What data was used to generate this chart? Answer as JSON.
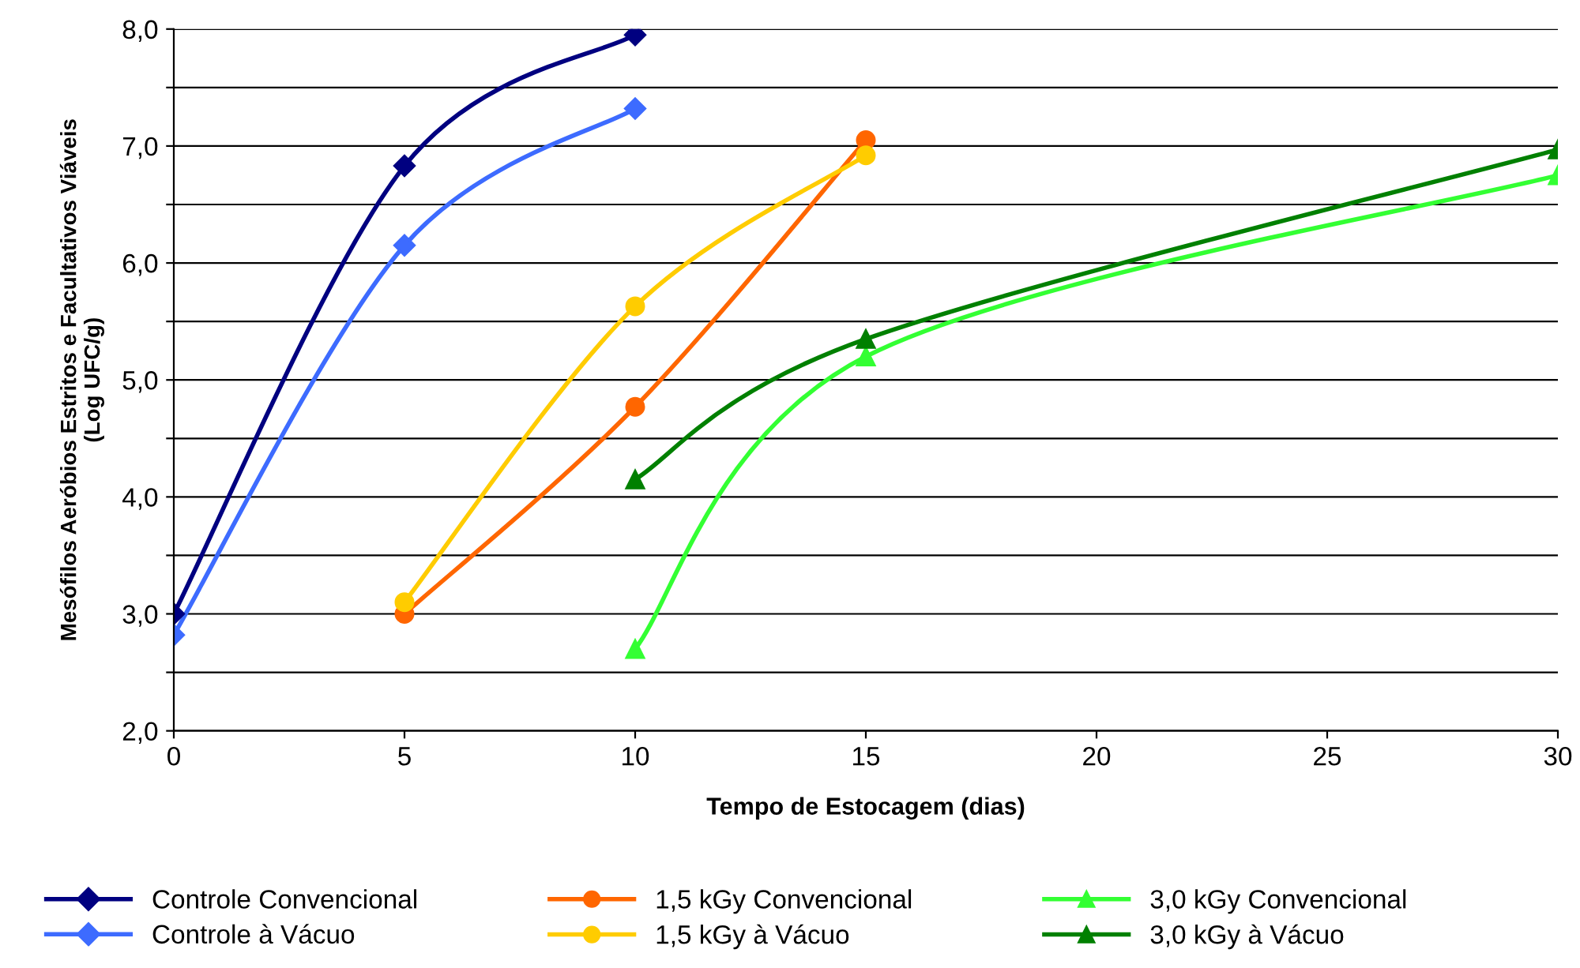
{
  "chart_data": {
    "type": "line",
    "xlabel": "Tempo de Estocagem (dias)",
    "ylabel": "Mesófilos Aeróbios Estritos e Facultativos Viáveis\n(Log UFC/g)",
    "xlim": [
      0,
      30
    ],
    "xticks": [
      0,
      5,
      10,
      15,
      20,
      25,
      30
    ],
    "ylim": [
      2,
      8
    ],
    "yticks": [
      {
        "value": 2,
        "label": "2,0"
      },
      {
        "value": 2.5,
        "label": null
      },
      {
        "value": 3,
        "label": "3,0"
      },
      {
        "value": 3.5,
        "label": null
      },
      {
        "value": 4,
        "label": "4,0"
      },
      {
        "value": 4.5,
        "label": null
      },
      {
        "value": 5,
        "label": "5,0"
      },
      {
        "value": 5.5,
        "label": null
      },
      {
        "value": 6,
        "label": "6,0"
      },
      {
        "value": 6.5,
        "label": null
      },
      {
        "value": 7,
        "label": "7,0"
      },
      {
        "value": 7.5,
        "label": null
      },
      {
        "value": 8,
        "label": "8,0"
      }
    ],
    "grid": "y",
    "legend": "bottom",
    "series": [
      {
        "name": "Controle Convencional",
        "color": "#000080",
        "marker": "diamond",
        "x": [
          0,
          5,
          10
        ],
        "values": [
          3.0,
          6.83,
          7.95
        ]
      },
      {
        "name": "Controle à Vácuo",
        "color": "#3d6bff",
        "marker": "diamond",
        "x": [
          0,
          5,
          10
        ],
        "values": [
          2.82,
          6.15,
          7.32
        ]
      },
      {
        "name": "1,5 kGy Convencional",
        "color": "#ff6600",
        "marker": "circle",
        "x": [
          5,
          10,
          15
        ],
        "values": [
          3.0,
          4.77,
          7.05
        ]
      },
      {
        "name": "1,5 kGy à Vácuo",
        "color": "#ffcc00",
        "marker": "circle",
        "x": [
          5,
          10,
          15
        ],
        "values": [
          3.1,
          5.63,
          6.92
        ]
      },
      {
        "name": "3,0 kGy Convencional",
        "color": "#33ff33",
        "marker": "triangle",
        "x": [
          10,
          15,
          30
        ],
        "values": [
          2.7,
          5.2,
          6.75
        ]
      },
      {
        "name": "3,0 kGy à Vácuo",
        "color": "#008000",
        "marker": "triangle",
        "x": [
          10,
          15,
          30
        ],
        "values": [
          4.15,
          5.35,
          6.97
        ]
      }
    ]
  }
}
